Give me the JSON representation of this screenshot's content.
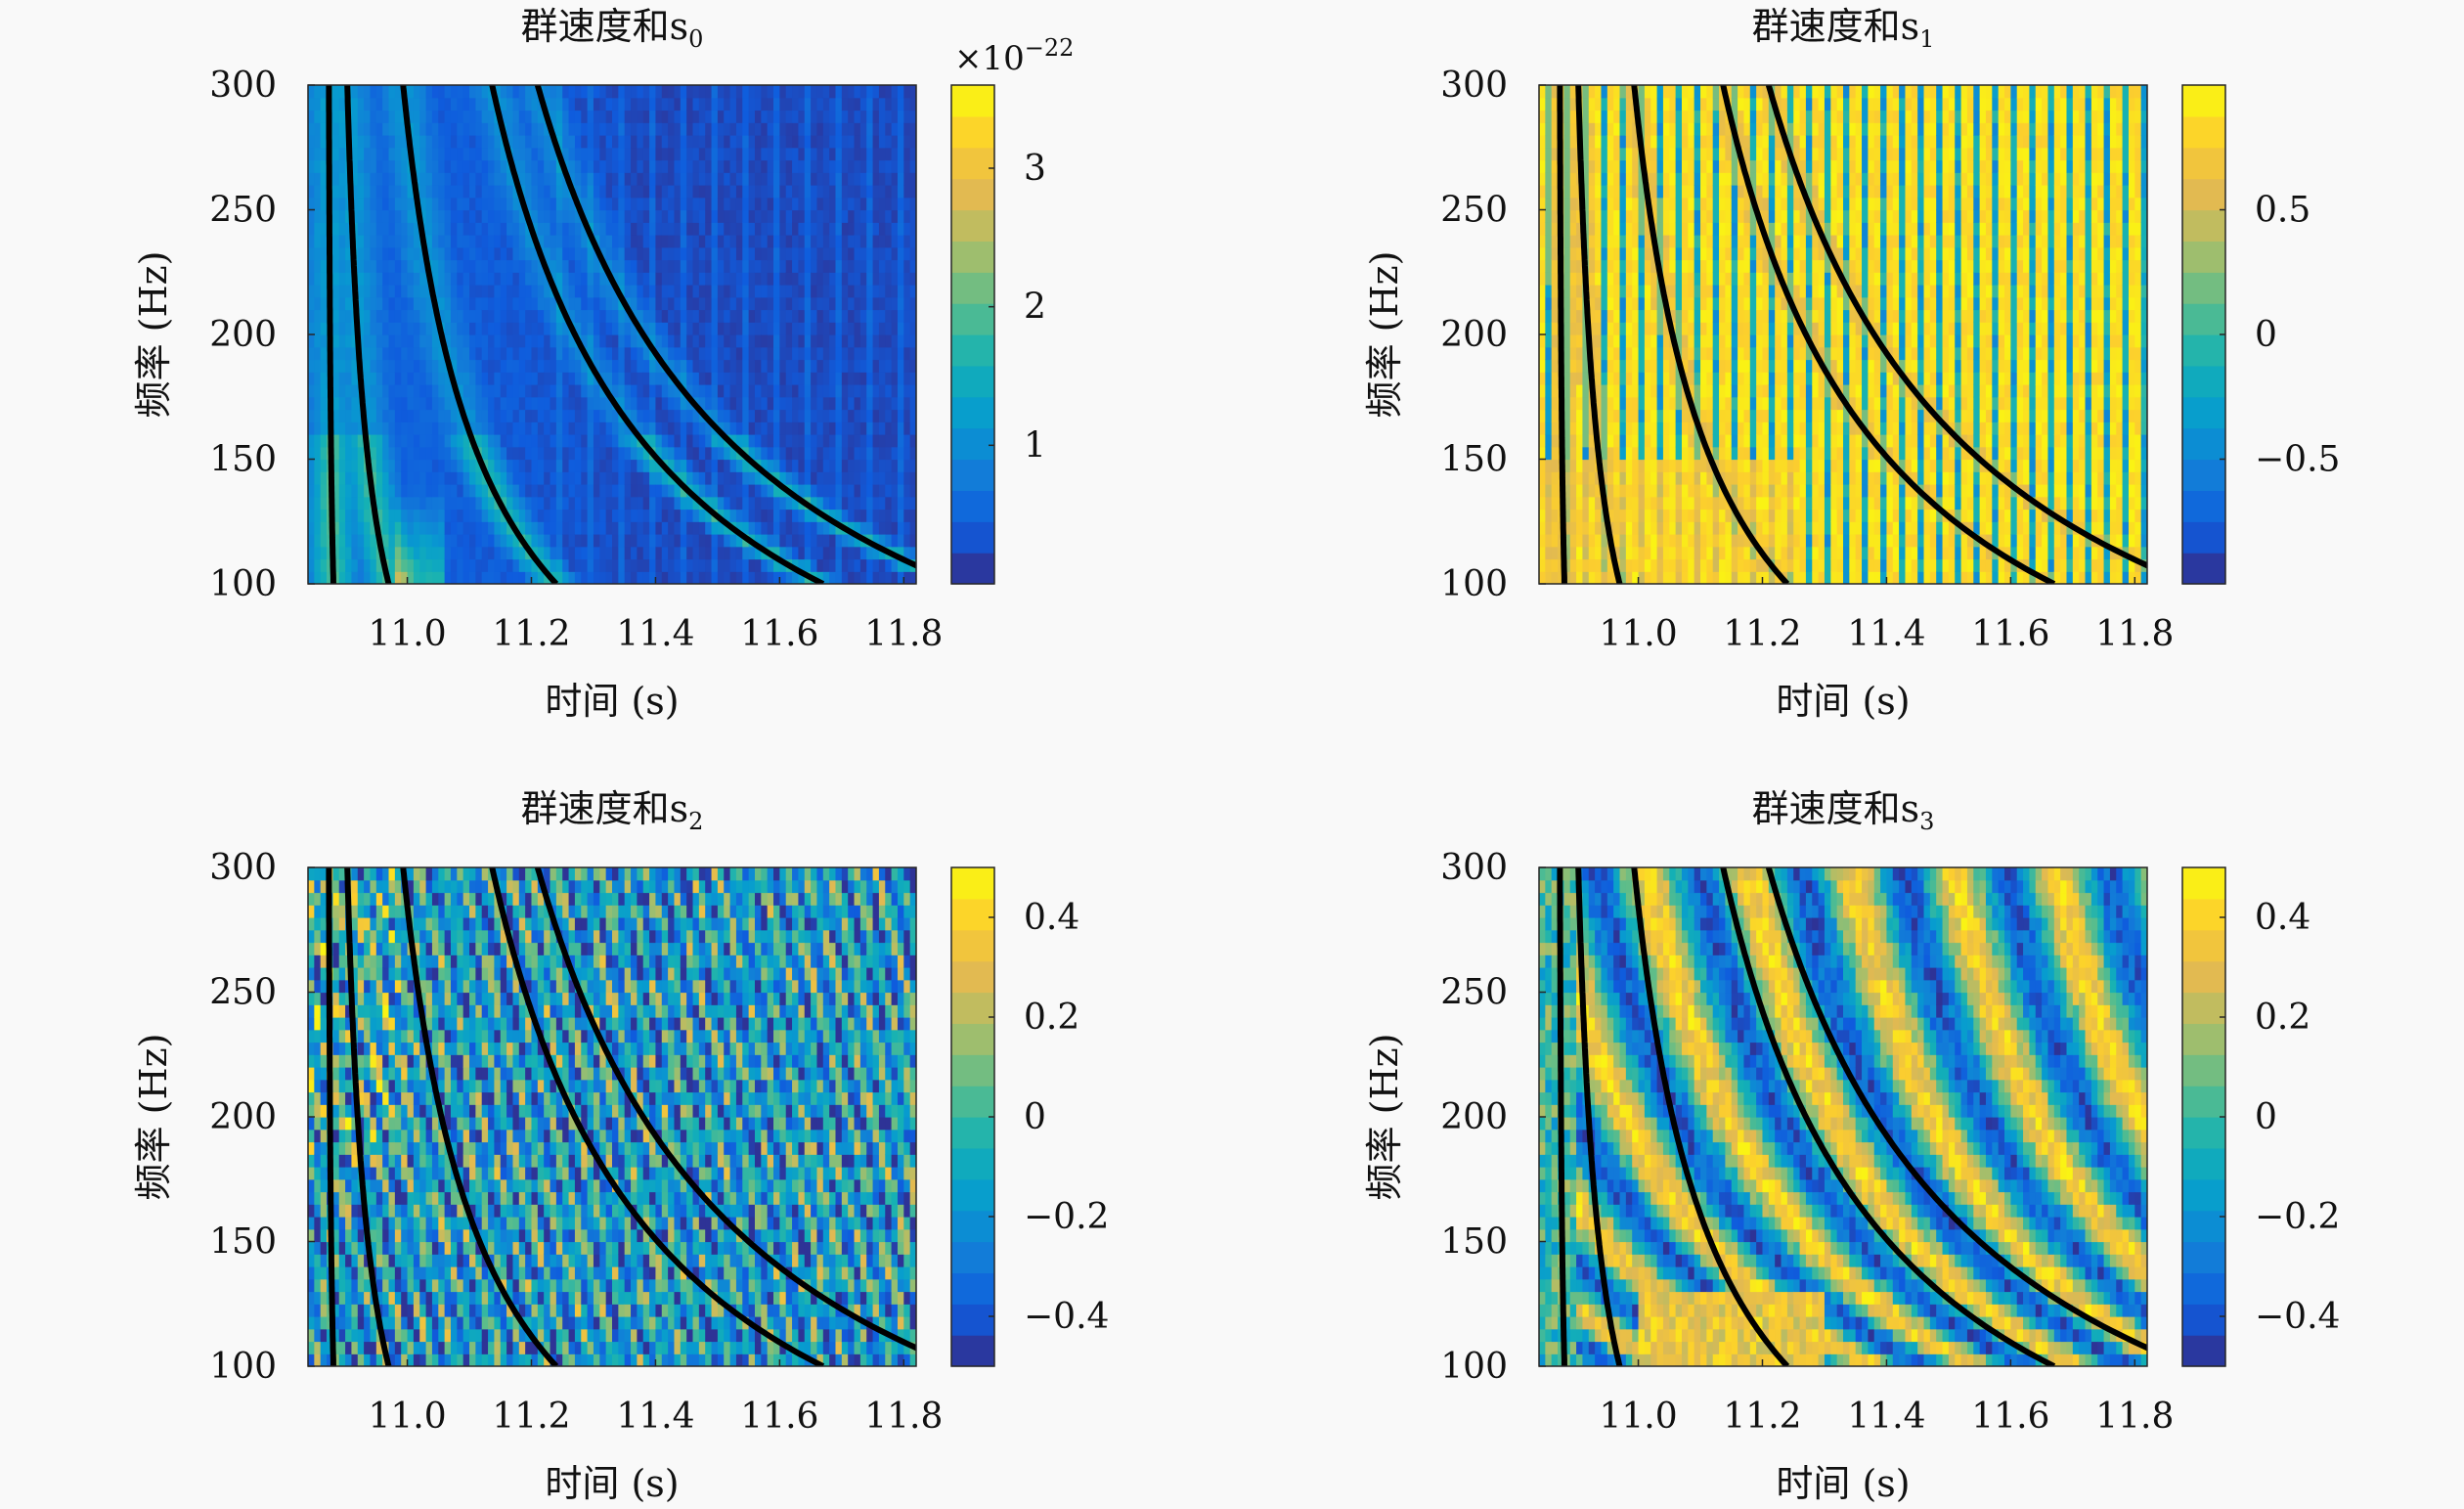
{
  "figure": {
    "background": "#f9f9f9",
    "colormap": "parula",
    "curve_color": "#000000"
  },
  "chart_data": [
    {
      "type": "heatmap",
      "title": "群速度和s",
      "title_subscript": "0",
      "xlabel": "时间 (s)",
      "ylabel": "频率 (Hz)",
      "xlim": [
        10.84,
        11.82
      ],
      "ylim": [
        100,
        300
      ],
      "xticks": [
        "11.0",
        "11.2",
        "11.4",
        "11.6",
        "11.8"
      ],
      "yticks": [
        "100",
        "150",
        "200",
        "250",
        "300"
      ],
      "colorbar": {
        "range": [
          0,
          3.6
        ],
        "ticks": [
          "1",
          "2",
          "3"
        ],
        "tick_values": [
          1,
          2,
          3
        ],
        "exponent_label": "×10",
        "exponent": "−22"
      },
      "field": "energy",
      "curves": [
        {
          "t0": 10.87,
          "k": 1.1
        },
        {
          "t0": 10.87,
          "k": 10.0
        },
        {
          "t0": 10.87,
          "k": 37.0
        },
        {
          "t0": 10.87,
          "k": 80.0
        },
        {
          "t0": 10.87,
          "k": 102.0
        }
      ]
    },
    {
      "type": "heatmap",
      "title": "群速度和s",
      "title_subscript": "1",
      "xlabel": "时间 (s)",
      "ylabel": "频率 (Hz)",
      "xlim": [
        10.84,
        11.82
      ],
      "ylim": [
        100,
        300
      ],
      "xticks": [
        "11.0",
        "11.2",
        "11.4",
        "11.6",
        "11.8"
      ],
      "yticks": [
        "100",
        "150",
        "200",
        "250",
        "300"
      ],
      "colorbar": {
        "range": [
          -1,
          1
        ],
        "ticks": [
          "0.5",
          "0",
          "−0.5"
        ],
        "tick_values": [
          0.5,
          0,
          -0.5
        ]
      },
      "field": "stripes",
      "curves": [
        {
          "t0": 10.87,
          "k": 1.1
        },
        {
          "t0": 10.87,
          "k": 10.0
        },
        {
          "t0": 10.87,
          "k": 37.0
        },
        {
          "t0": 10.87,
          "k": 80.0
        },
        {
          "t0": 10.87,
          "k": 102.0
        }
      ]
    },
    {
      "type": "heatmap",
      "title": "群速度和s",
      "title_subscript": "2",
      "xlabel": "时间 (s)",
      "ylabel": "频率 (Hz)",
      "xlim": [
        10.84,
        11.82
      ],
      "ylim": [
        100,
        300
      ],
      "xticks": [
        "11.0",
        "11.2",
        "11.4",
        "11.6",
        "11.8"
      ],
      "yticks": [
        "100",
        "150",
        "200",
        "250",
        "300"
      ],
      "colorbar": {
        "range": [
          -0.5,
          0.5
        ],
        "ticks": [
          "0.4",
          "0.2",
          "0",
          "−0.2",
          "−0.4"
        ],
        "tick_values": [
          0.4,
          0.2,
          0,
          -0.2,
          -0.4
        ]
      },
      "field": "speckle",
      "curves": [
        {
          "t0": 10.87,
          "k": 1.1
        },
        {
          "t0": 10.87,
          "k": 10.0
        },
        {
          "t0": 10.87,
          "k": 37.0
        },
        {
          "t0": 10.87,
          "k": 80.0
        },
        {
          "t0": 10.87,
          "k": 102.0
        }
      ]
    },
    {
      "type": "heatmap",
      "title": "群速度和s",
      "title_subscript": "3",
      "xlabel": "时间 (s)",
      "ylabel": "频率 (Hz)",
      "xlim": [
        10.84,
        11.82
      ],
      "ylim": [
        100,
        300
      ],
      "xticks": [
        "11.0",
        "11.2",
        "11.4",
        "11.6",
        "11.8"
      ],
      "yticks": [
        "100",
        "150",
        "200",
        "250",
        "300"
      ],
      "colorbar": {
        "range": [
          -0.5,
          0.5
        ],
        "ticks": [
          "0.4",
          "0.2",
          "0",
          "−0.2",
          "−0.4"
        ],
        "tick_values": [
          0.4,
          0.2,
          0,
          -0.2,
          -0.4
        ]
      },
      "field": "bands",
      "curves": [
        {
          "t0": 10.87,
          "k": 1.1
        },
        {
          "t0": 10.87,
          "k": 10.0
        },
        {
          "t0": 10.87,
          "k": 37.0
        },
        {
          "t0": 10.87,
          "k": 80.0
        },
        {
          "t0": 10.87,
          "k": 102.0
        }
      ]
    }
  ]
}
